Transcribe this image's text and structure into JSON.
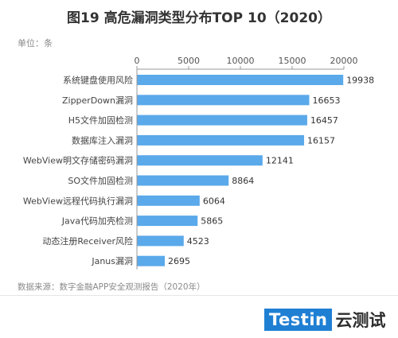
{
  "title": "图19 高危漏洞类型分布TOP 10（2020）",
  "unit": "单位：条",
  "source": "数据来源：数字金融APP安全观测报告（2020年）",
  "logo": {
    "box_text": "Testin",
    "cn_text": "云测试",
    "box_color": "#1f7fd3"
  },
  "chart_data": {
    "type": "bar",
    "orientation": "horizontal",
    "categories": [
      "系统键盘使用风险",
      "ZipperDown漏洞",
      "H5文件加固检测",
      "数据库注入漏洞",
      "WebView明文存储密码漏洞",
      "SO文件加固检测",
      "WebView远程代码执行漏洞",
      "Java代码加壳检测",
      "动态注册Receiver风险",
      "Janus漏洞"
    ],
    "values": [
      19938,
      16653,
      16457,
      16157,
      12141,
      8864,
      6064,
      5865,
      4523,
      2695
    ],
    "xlim": [
      0,
      20000
    ],
    "xticks": [
      0,
      5000,
      10000,
      15000,
      20000
    ],
    "axis_position": "top",
    "grid": false,
    "bar_color": "#5aa9ea"
  }
}
